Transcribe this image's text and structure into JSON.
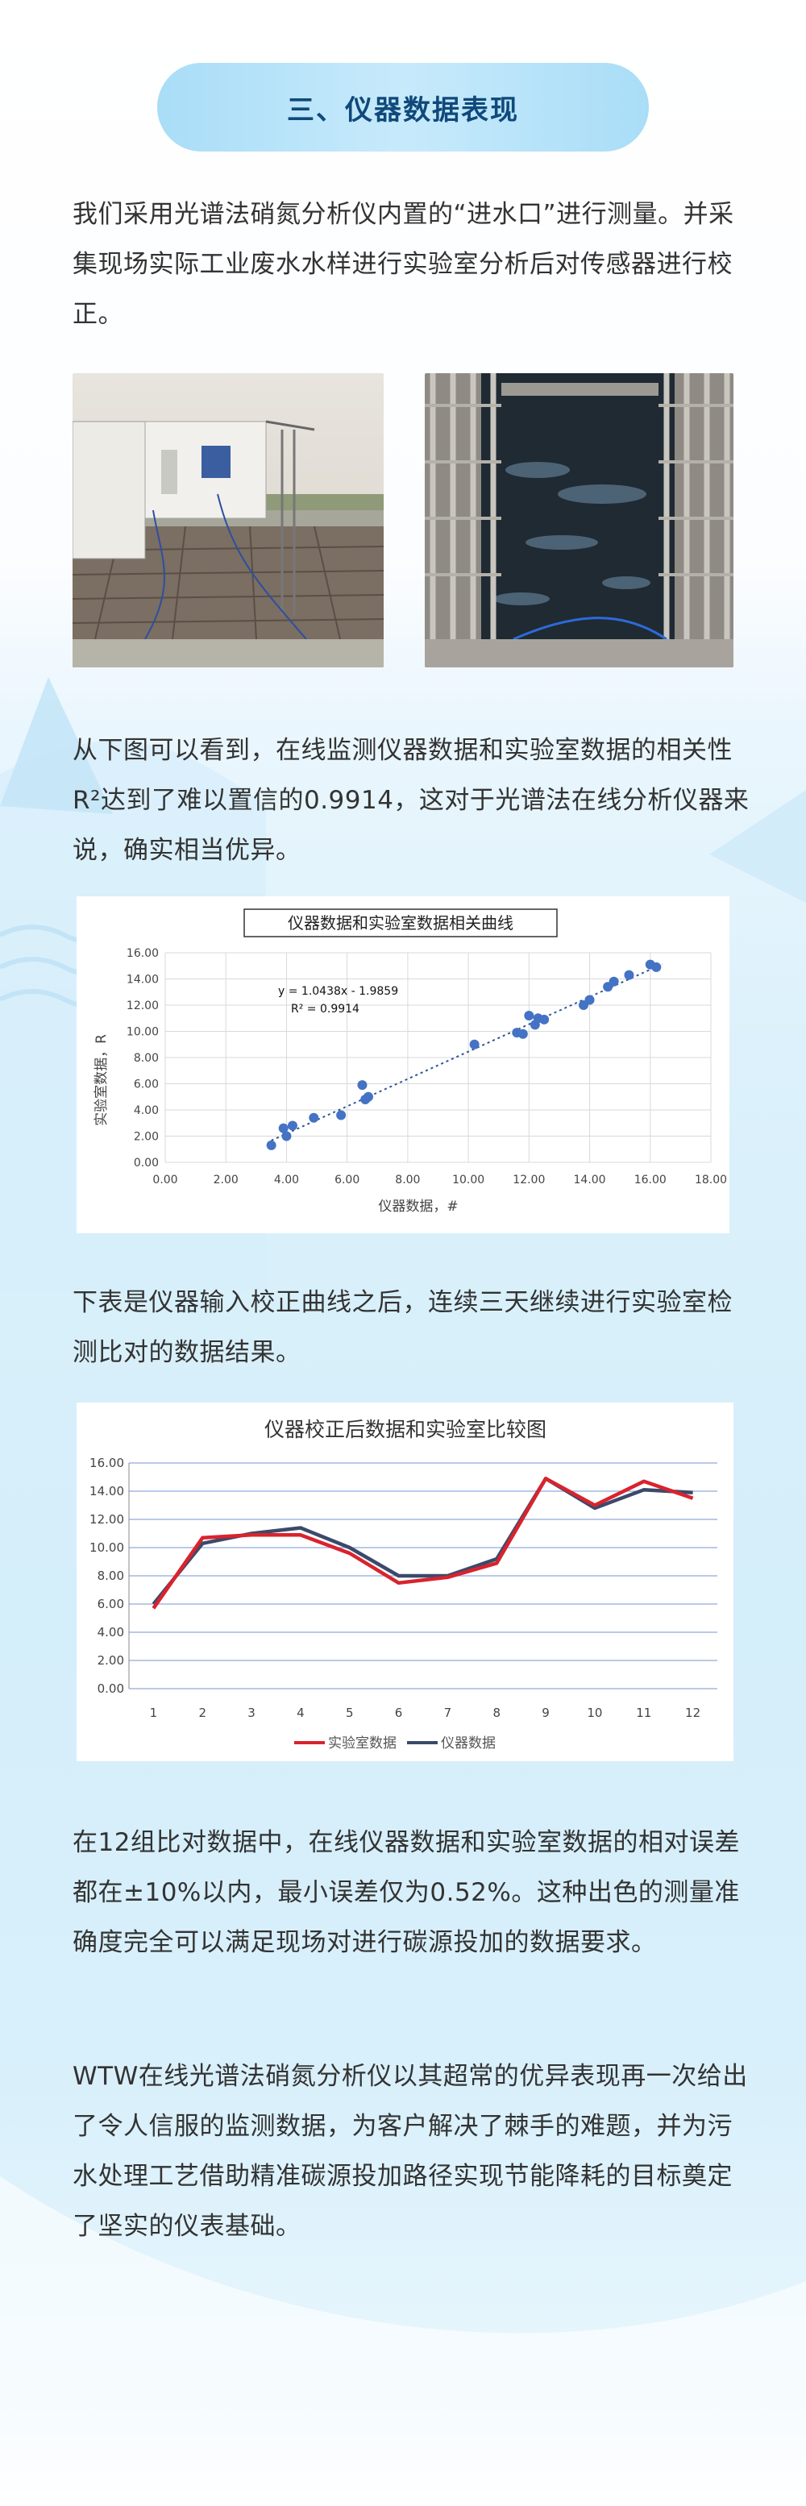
{
  "section_title": "三、仪器数据表现",
  "intro_text": "我们采用光谱法硝氮分析仪内置的“进水口”进行测量。并采集现场实际工业废水水样进行实验室分析后对传感器进行校正。",
  "para_correlation": "从下图可以看到，在线监测仪器数据和实验室数据的相关性R²达到了难以置信的0.9914，这对于光谱法在线分析仪器来说，确实相当优异。",
  "para_table_intro": "下表是仪器输入校正曲线之后，连续三天继续进行实验室检测比对的数据结果。",
  "para_error": "在12组比对数据中，在线仪器数据和实验室数据的相对误差都在±10%以内，最小误差仅为0.52%。这种出色的测量准确度完全可以满足现场对进行碳源投加的数据要求。",
  "para_conclusion": "WTW在线光谱法硝氮分析仪以其超常的优异表现再一次给出了令人信服的监测数据，为客户解决了棘手的难题，并为污水处理工艺借助精准碳源投加路径实现节能降耗的目标奠定了坚实的仪表基础。",
  "colors": {
    "title_text": "#10497a",
    "pill": "#b7e3f9",
    "scatter_point": "#4472c4",
    "lab_line": "#d9232d",
    "instrument_line": "#3b4a6b"
  },
  "chart_data": [
    {
      "type": "scatter",
      "title": "仪器数据和实验室数据相关曲线",
      "xlabel": "仪器数据，#",
      "ylabel": "实验室数据，R",
      "xlim": [
        0,
        18
      ],
      "ylim": [
        0,
        16
      ],
      "xticks": [
        "0.00",
        "2.00",
        "4.00",
        "6.00",
        "8.00",
        "10.00",
        "12.00",
        "14.00",
        "16.00",
        "18.00"
      ],
      "yticks": [
        "0.00",
        "2.00",
        "4.00",
        "6.00",
        "8.00",
        "10.00",
        "12.00",
        "14.00",
        "16.00"
      ],
      "equation": "y = 1.0438x - 1.9859",
      "r_squared": "R² = 0.9914",
      "trendline": {
        "slope": 1.0438,
        "intercept": -1.9859
      },
      "points": [
        [
          3.5,
          1.3
        ],
        [
          3.9,
          2.6
        ],
        [
          4.0,
          2.0
        ],
        [
          4.2,
          2.8
        ],
        [
          4.9,
          3.4
        ],
        [
          5.8,
          3.6
        ],
        [
          6.5,
          5.9
        ],
        [
          6.6,
          4.8
        ],
        [
          6.7,
          5.0
        ],
        [
          10.2,
          9.0
        ],
        [
          11.6,
          9.9
        ],
        [
          11.8,
          9.8
        ],
        [
          12.0,
          11.2
        ],
        [
          12.2,
          10.5
        ],
        [
          12.3,
          11.0
        ],
        [
          12.5,
          10.9
        ],
        [
          13.8,
          12.0
        ],
        [
          14.0,
          12.4
        ],
        [
          14.6,
          13.4
        ],
        [
          14.8,
          13.8
        ],
        [
          15.3,
          14.3
        ],
        [
          16.0,
          15.1
        ],
        [
          16.2,
          14.9
        ]
      ],
      "grid": true
    },
    {
      "type": "line",
      "title": "仪器校正后数据和实验室比较图",
      "categories": [
        "1",
        "2",
        "3",
        "4",
        "5",
        "6",
        "7",
        "8",
        "9",
        "10",
        "11",
        "12"
      ],
      "ylim": [
        0,
        16
      ],
      "yticks": [
        "0.00",
        "2.00",
        "4.00",
        "6.00",
        "8.00",
        "10.00",
        "12.00",
        "14.00",
        "16.00"
      ],
      "series": [
        {
          "name": "实验室数据",
          "values": [
            5.7,
            10.7,
            10.9,
            10.9,
            9.6,
            7.5,
            7.9,
            8.9,
            14.9,
            13.0,
            14.7,
            13.5
          ]
        },
        {
          "name": "仪器数据",
          "values": [
            6.0,
            10.3,
            11.0,
            11.4,
            10.0,
            8.0,
            8.0,
            9.2,
            14.9,
            12.8,
            14.1,
            13.9
          ]
        }
      ],
      "legend": "bottom",
      "grid": true
    }
  ]
}
